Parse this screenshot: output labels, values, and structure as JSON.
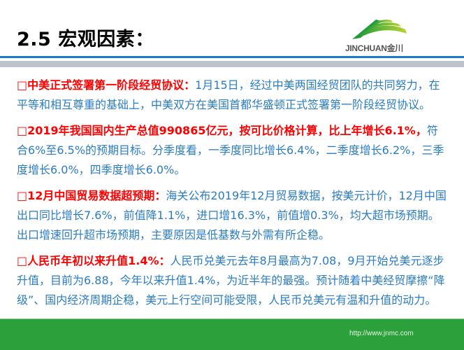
{
  "header": {
    "title": "2.5 宏观因素："
  },
  "logo": {
    "text": "JINCHUAN金川",
    "colors": [
      "#1e9a3a",
      "#b8d430"
    ]
  },
  "colors": {
    "accent_blue": "#1f78c8",
    "body_text": "#2a7cc4",
    "lead_text": "#ff0000",
    "footer_green": "#2ca03a"
  },
  "paragraphs": [
    {
      "bullet": "□",
      "lead": "中美正式签署第一阶段经贸协议：",
      "body": "1月15日，经过中美两国经贸团队的共同努力，在平等和相互尊重的基础上，中美双方在美国首都华盛顿正式签署第一阶段经贸协议。"
    },
    {
      "bullet": "□",
      "lead": "2019年我国国内生产总值990865亿元，按可比价格计算，比上年增长6.1%，",
      "body": "符合6%至6.5%的预期目标。分季度看，一季度同比增长6.4%，二季度增长6.2%，三季度增长6.0%，四季度增长6.0%。"
    },
    {
      "bullet": "□",
      "lead": "12月中国贸易数据超预期：",
      "body": "海关公布2019年12月贸易数据，按美元计价，12月中国出口同比增长7.6%，前值降1.1%，进口增16.3%，前值增0.3%，均大超市场预期。出口增速回升超市场预期，主要原因是低基数与外需有所企稳。"
    },
    {
      "bullet": "□",
      "lead": "人民币年初以来升值1.4%：",
      "body": "人民币兑美元去年8月最高为7.08，9月开始兑美元逐步升值，目前为6.88，今年以来升值1.4%，为近半年的最强。预计随着中美经贸摩擦“降级”、国内经济周期企稳，美元上行空间可能受限，人民币兑美元有温和升值的动力。"
    }
  ],
  "footer": {
    "url": "http://www.jnmc.com"
  }
}
